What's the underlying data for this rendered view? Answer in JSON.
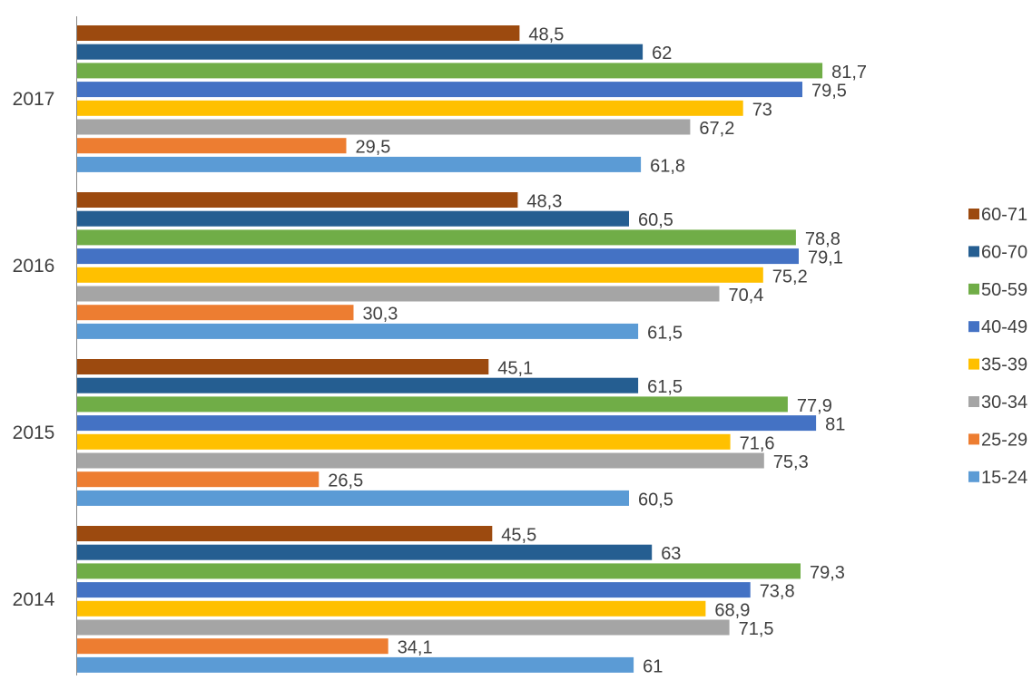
{
  "chart_data": {
    "type": "bar",
    "orientation": "horizontal",
    "categories": [
      "2017",
      "2016",
      "2015",
      "2014"
    ],
    "series": [
      {
        "name": "60-71",
        "color": "#9C4A0F",
        "values": [
          48.5,
          48.3,
          45.1,
          45.5
        ],
        "labels": [
          "48,5",
          "48,3",
          "45,1",
          "45,5"
        ]
      },
      {
        "name": "60-70",
        "color": "#255E91",
        "values": [
          62,
          60.5,
          61.5,
          63
        ],
        "labels": [
          "62",
          "60,5",
          "61,5",
          "63"
        ]
      },
      {
        "name": "50-59",
        "color": "#70AD47",
        "values": [
          81.7,
          78.8,
          77.9,
          79.3
        ],
        "labels": [
          "81,7",
          "78,8",
          "77,9",
          "79,3"
        ]
      },
      {
        "name": "40-49",
        "color": "#4472C4",
        "values": [
          79.5,
          79.1,
          81,
          73.8
        ],
        "labels": [
          "79,5",
          "79,1",
          "81",
          "73,8"
        ]
      },
      {
        "name": "35-39",
        "color": "#FFC000",
        "values": [
          73,
          75.2,
          71.6,
          68.9
        ],
        "labels": [
          "73",
          "75,2",
          "71,6",
          "68,9"
        ]
      },
      {
        "name": "30-34",
        "color": "#A5A5A5",
        "values": [
          67.2,
          70.4,
          75.3,
          71.5
        ],
        "labels": [
          "67,2",
          "70,4",
          "75,3",
          "71,5"
        ]
      },
      {
        "name": "25-29",
        "color": "#ED7D31",
        "values": [
          29.5,
          30.3,
          26.5,
          34.1
        ],
        "labels": [
          "29,5",
          "30,3",
          "26,5",
          "34,1"
        ]
      },
      {
        "name": "15-24",
        "color": "#5B9BD5",
        "values": [
          61.8,
          61.5,
          60.5,
          61
        ],
        "labels": [
          "61,8",
          "61,5",
          "60,5",
          "61"
        ]
      }
    ],
    "legend": {
      "position": "right"
    },
    "grid": false,
    "title": "",
    "xlabel": "",
    "ylabel": ""
  }
}
